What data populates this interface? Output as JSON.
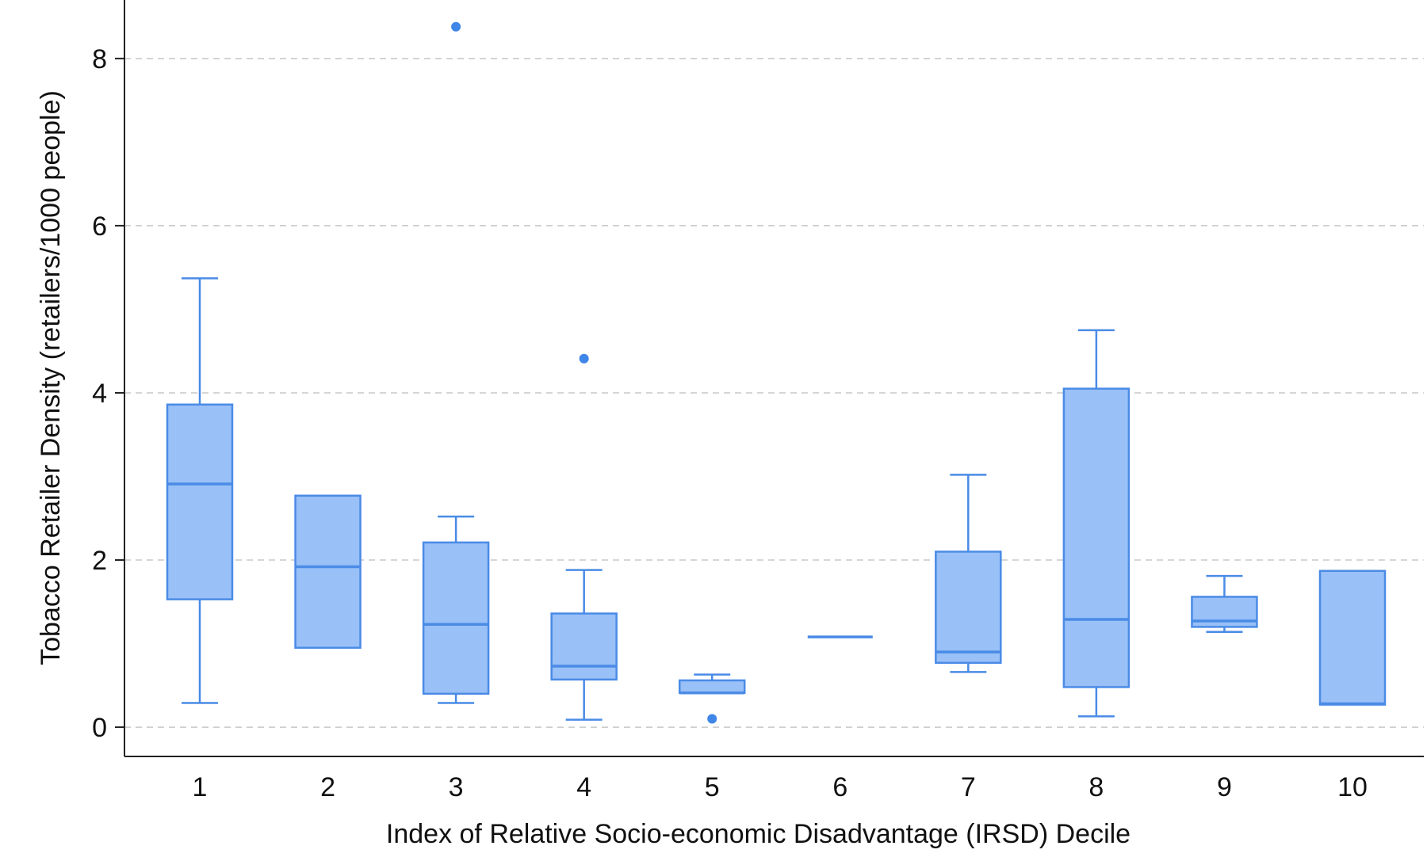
{
  "chart_data": {
    "type": "box",
    "xlabel": "Index of Relative Socio-economic Disadvantage (IRSD) Decile",
    "ylabel": "Tobacco Retailer Density (retailers/1000 people)",
    "categories": [
      "1",
      "2",
      "3",
      "4",
      "5",
      "6",
      "7",
      "8",
      "9",
      "10"
    ],
    "ylim": [
      -0.35,
      8.7
    ],
    "yticks": [
      0,
      2,
      4,
      6,
      8
    ],
    "ytick_labels": [
      "0",
      "2",
      "4",
      "6",
      "8"
    ],
    "grid": "horizontal dashed",
    "legend": "none",
    "colors": {
      "box_fill": "#99c0f7",
      "box_stroke": "#4a8be6",
      "outlier": "#3f86e8"
    },
    "boxes": [
      {
        "category": "1",
        "whisker_low": 0.29,
        "q1": 1.53,
        "median": 2.91,
        "q3": 3.86,
        "whisker_high": 5.37,
        "outliers": []
      },
      {
        "category": "2",
        "whisker_low": 0.95,
        "q1": 0.95,
        "median": 1.92,
        "q3": 2.77,
        "whisker_high": 2.77,
        "outliers": []
      },
      {
        "category": "3",
        "whisker_low": 0.29,
        "q1": 0.4,
        "median": 1.23,
        "q3": 2.21,
        "whisker_high": 2.52,
        "outliers": [
          8.38
        ]
      },
      {
        "category": "4",
        "whisker_low": 0.09,
        "q1": 0.57,
        "median": 0.73,
        "q3": 1.36,
        "whisker_high": 1.88,
        "outliers": [
          4.41
        ]
      },
      {
        "category": "5",
        "whisker_low": 0.41,
        "q1": 0.41,
        "median": 0.41,
        "q3": 0.56,
        "whisker_high": 0.63,
        "outliers": [
          0.1
        ]
      },
      {
        "category": "6",
        "whisker_low": 1.08,
        "q1": 1.08,
        "median": 1.08,
        "q3": 1.08,
        "whisker_high": 1.08,
        "outliers": []
      },
      {
        "category": "7",
        "whisker_low": 0.66,
        "q1": 0.77,
        "median": 0.9,
        "q3": 2.1,
        "whisker_high": 3.02,
        "outliers": []
      },
      {
        "category": "8",
        "whisker_low": 0.13,
        "q1": 0.48,
        "median": 1.29,
        "q3": 4.05,
        "whisker_high": 4.75,
        "outliers": []
      },
      {
        "category": "9",
        "whisker_low": 1.14,
        "q1": 1.2,
        "median": 1.27,
        "q3": 1.56,
        "whisker_high": 1.81,
        "outliers": []
      },
      {
        "category": "10",
        "whisker_low": 0.27,
        "q1": 0.27,
        "median": 0.28,
        "q3": 1.87,
        "whisker_high": 1.87,
        "outliers": []
      }
    ]
  }
}
